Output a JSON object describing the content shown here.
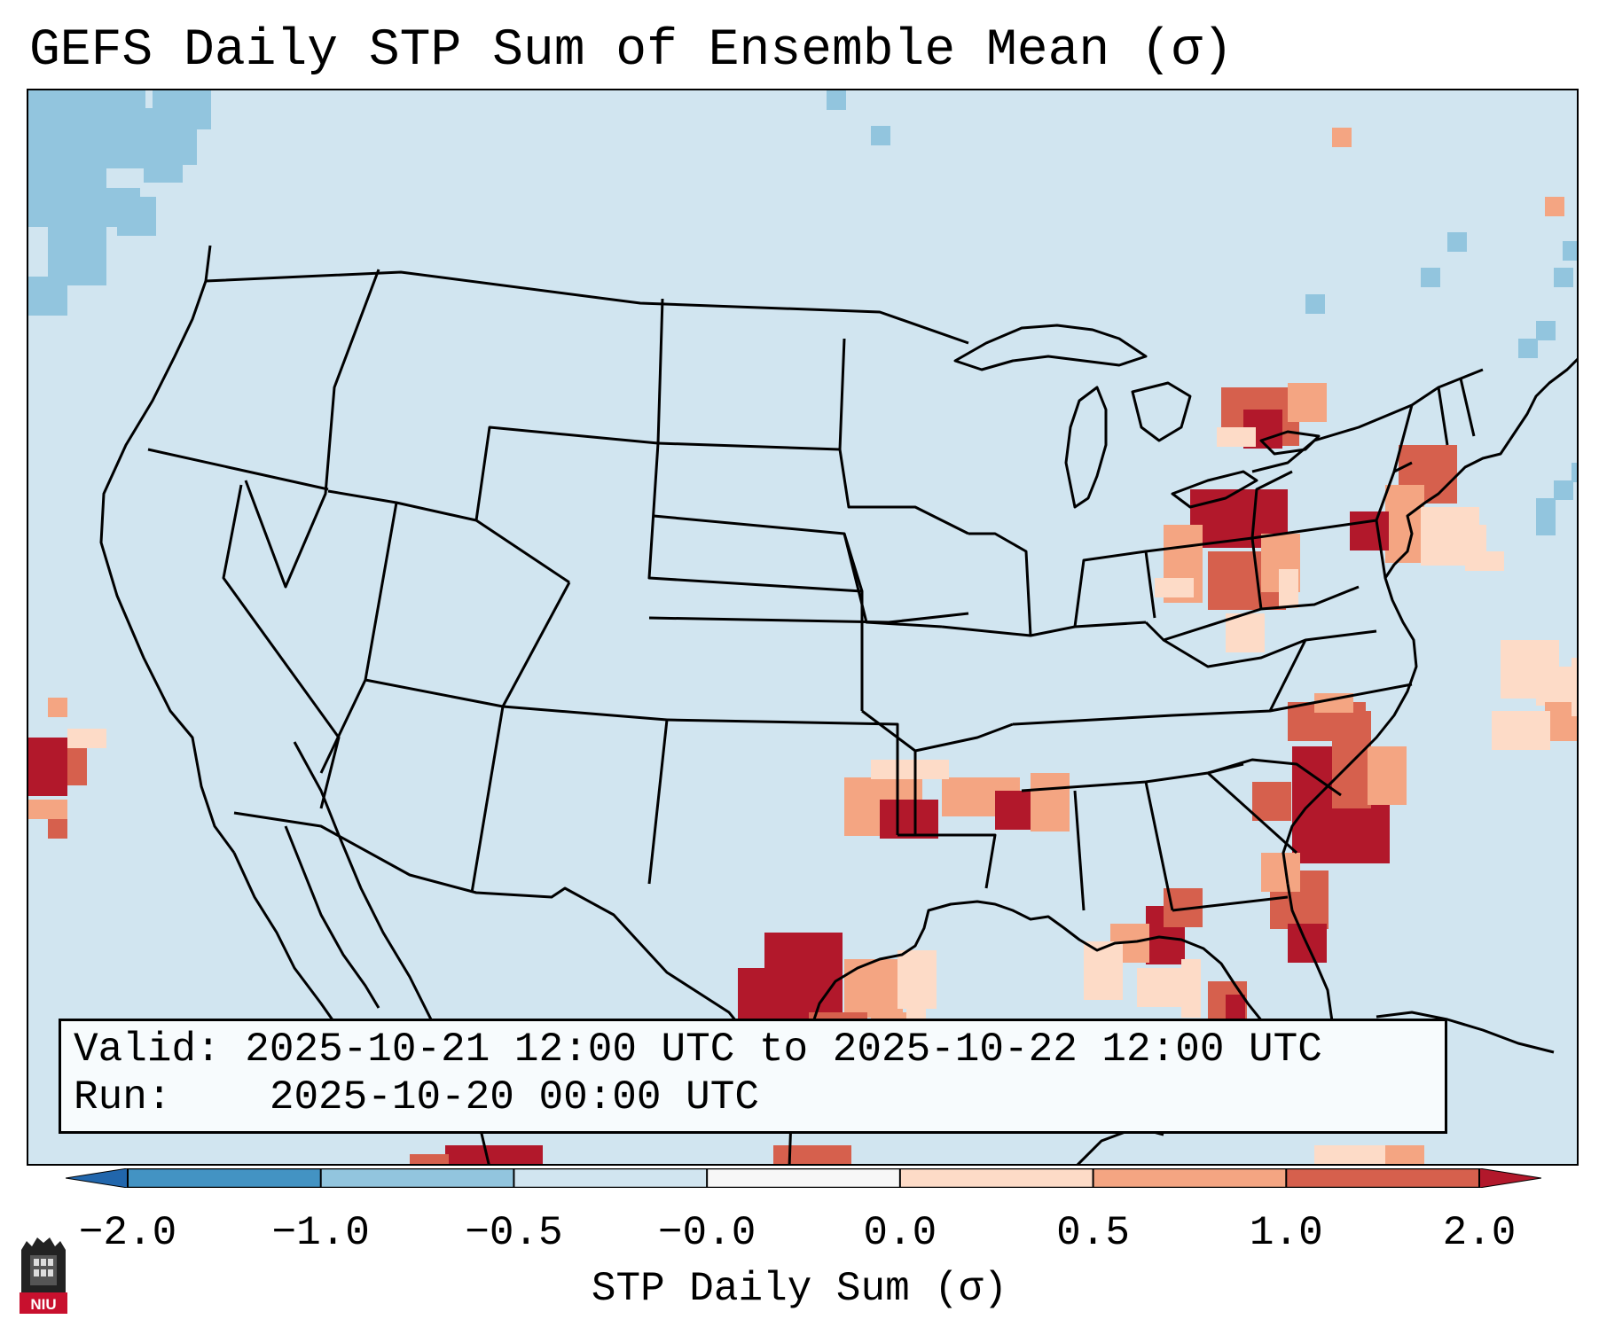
{
  "title": "GEFS Daily STP Sum of Ensemble Mean (σ)",
  "info": {
    "valid_label": "Valid:",
    "valid_value": "2025-10-21 12:00 UTC to 2025-10-22 12:00 UTC",
    "run_label": "Run:",
    "run_value": "2025-10-20 00:00 UTC"
  },
  "colorbar": {
    "label": "STP Daily Sum (σ)",
    "ticks": [
      "−2.0",
      "−1.0",
      "−0.5",
      "−0.0",
      "0.0",
      "0.5",
      "1.0",
      "2.0"
    ],
    "bins": [
      {
        "range": "< -2.0",
        "color": "#2166ac"
      },
      {
        "range": "-2.0 to -1.0",
        "color": "#4393c3"
      },
      {
        "range": "-1.0 to -0.5",
        "color": "#92c5de"
      },
      {
        "range": "-0.5 to -0.0",
        "color": "#d1e5f0"
      },
      {
        "range": "-0.0 to 0.0",
        "color": "#f7f7f7"
      },
      {
        "range": "0.0 to 0.5",
        "color": "#fddbc7"
      },
      {
        "range": "0.5 to 1.0",
        "color": "#f4a582"
      },
      {
        "range": "1.0 to 2.0",
        "color": "#d6604d"
      },
      {
        "range": "> 2.0",
        "color": "#b2182b"
      }
    ]
  },
  "logo": {
    "text": "NIU",
    "color": "#c8102e"
  },
  "map": {
    "projection": "Lambert Conformal (CONUS)",
    "background_color": "#d1e5f0",
    "features": [
      "coastlines",
      "country-borders",
      "state-borders"
    ],
    "highlight_regions": [
      {
        "area": "Texas Gulf coast",
        "level": "> 2.0"
      },
      {
        "area": "Louisiana / Mississippi",
        "level": "1.0 to 2.0"
      },
      {
        "area": "Florida Big Bend",
        "level": "1.0 to 2.0"
      },
      {
        "area": "Georgia / Carolina coast",
        "level": "> 2.0"
      },
      {
        "area": "Ohio / West Virginia",
        "level": "1.0 to 2.0"
      },
      {
        "area": "Lake Ontario",
        "level": "1.0 to 2.0"
      },
      {
        "area": "Long Island / New Jersey",
        "level": "1.0 to 2.0"
      },
      {
        "area": "Eastern Pacific",
        "level": "> 2.0"
      },
      {
        "area": "Pacific Northwest offshore",
        "level": "-1.0 to -0.5"
      }
    ]
  }
}
